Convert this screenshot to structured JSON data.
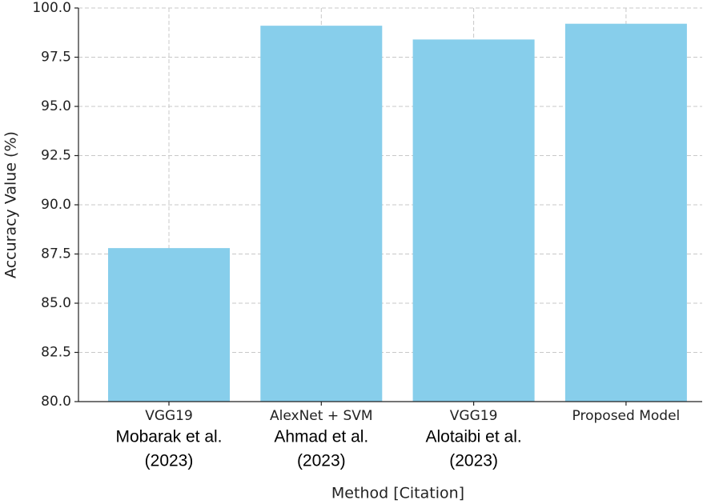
{
  "chart_data": {
    "type": "bar",
    "xlabel": "Method [Citation]",
    "ylabel": "Accuracy Value (%)",
    "categories": [
      "VGG19",
      "AlexNet + SVM",
      "VGG19",
      "Proposed Model"
    ],
    "citations": [
      [
        "Mobarak et al.",
        "(2023)"
      ],
      [
        "Ahmad et al.",
        "(2023)"
      ],
      [
        "Alotaibi et al.",
        "(2023)"
      ],
      null
    ],
    "values": [
      87.8,
      99.1,
      98.4,
      99.2
    ],
    "color": "#87ceeb",
    "ylim": [
      80,
      100
    ],
    "yticks": [
      {
        "value": 80,
        "label": "80.0"
      },
      {
        "value": 82.5,
        "label": "82.5"
      },
      {
        "value": 85,
        "label": "85.0"
      },
      {
        "value": 87.5,
        "label": "87.5"
      },
      {
        "value": 90,
        "label": "90.0"
      },
      {
        "value": 92.5,
        "label": "92.5"
      },
      {
        "value": 95,
        "label": "95.0"
      },
      {
        "value": 97.5,
        "label": "97.5"
      },
      {
        "value": 100,
        "label": "100.0"
      }
    ],
    "grid": true
  }
}
